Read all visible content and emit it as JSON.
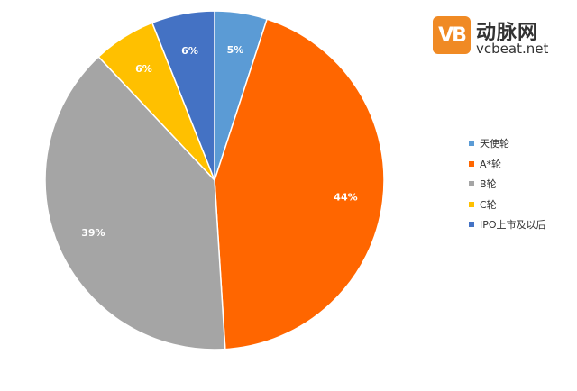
{
  "brand": {
    "mark": "VB",
    "name": "动脉网",
    "site": "vcbeat.net"
  },
  "chart_data": {
    "type": "pie",
    "start_angle_deg": 0,
    "direction": "clockwise",
    "slices": [
      {
        "name": "天使轮",
        "value": 5,
        "label": "5%",
        "color": "#5b9bd5"
      },
      {
        "name": "A*轮",
        "value": 44,
        "label": "44%",
        "color": "#ff6600"
      },
      {
        "name": "B轮",
        "value": 39,
        "label": "39%",
        "color": "#a5a5a5"
      },
      {
        "name": "C轮",
        "value": 6,
        "label": "6%",
        "color": "#ffc000"
      },
      {
        "name": "IPO上市及以后",
        "value": 6,
        "label": "6%",
        "color": "#4472c4"
      }
    ],
    "legend_position": "right"
  }
}
